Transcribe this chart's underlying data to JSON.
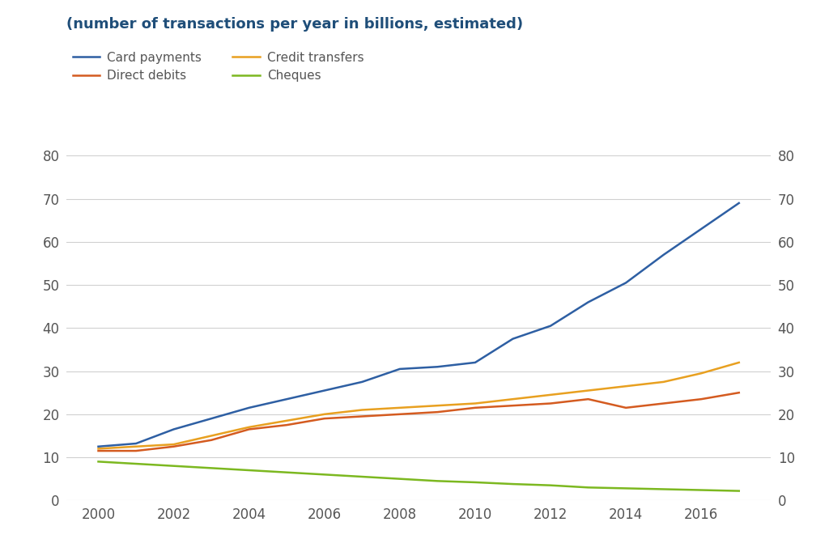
{
  "title": "(number of transactions per year in billions, estimated)",
  "title_color": "#1F4E79",
  "background_color": "#ffffff",
  "years": [
    2000,
    2001,
    2002,
    2003,
    2004,
    2005,
    2006,
    2007,
    2008,
    2009,
    2010,
    2011,
    2012,
    2013,
    2014,
    2015,
    2016,
    2017
  ],
  "card_payments": [
    12.5,
    13.2,
    16.5,
    19.0,
    21.5,
    23.5,
    25.5,
    27.5,
    30.5,
    31.0,
    32.0,
    37.5,
    40.5,
    46.0,
    50.5,
    57.0,
    63.0,
    69.0
  ],
  "credit_transfers": [
    12.0,
    12.5,
    13.0,
    15.0,
    17.0,
    18.5,
    20.0,
    21.0,
    21.5,
    22.0,
    22.5,
    23.5,
    24.5,
    25.5,
    26.5,
    27.5,
    29.5,
    32.0
  ],
  "direct_debits": [
    11.5,
    11.5,
    12.5,
    14.0,
    16.5,
    17.5,
    19.0,
    19.5,
    20.0,
    20.5,
    21.5,
    22.0,
    22.5,
    23.5,
    21.5,
    22.5,
    23.5,
    25.0
  ],
  "cheques": [
    9.0,
    8.5,
    8.0,
    7.5,
    7.0,
    6.5,
    6.0,
    5.5,
    5.0,
    4.5,
    4.2,
    3.8,
    3.5,
    3.0,
    2.8,
    2.6,
    2.4,
    2.2
  ],
  "card_color": "#2E5FA3",
  "credit_color": "#E8A020",
  "direct_color": "#D45B20",
  "cheque_color": "#7CB820",
  "ylim": [
    0,
    80
  ],
  "yticks": [
    0,
    10,
    20,
    30,
    40,
    50,
    60,
    70,
    80
  ],
  "xticks": [
    2000,
    2002,
    2004,
    2006,
    2008,
    2010,
    2012,
    2014,
    2016
  ],
  "legend_labels": [
    "Card payments",
    "Credit transfers",
    "Direct debits",
    "Cheques"
  ],
  "line_width": 1.8,
  "grid_color": "#d0d0d0",
  "tick_color": "#555555",
  "title_fontsize": 13,
  "tick_fontsize": 12
}
